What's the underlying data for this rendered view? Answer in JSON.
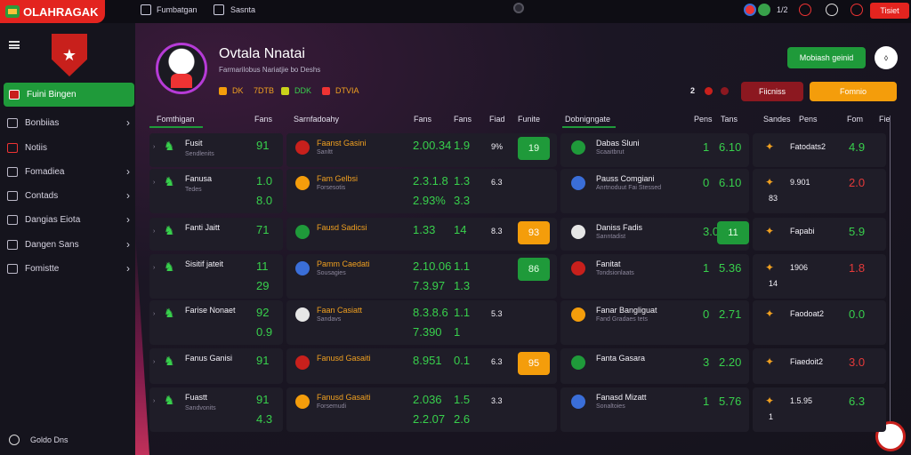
{
  "app": {
    "logo_text": "OLAHRAGAK"
  },
  "topbar": {
    "item1": "Fumbatgan",
    "item2": "Sasnta",
    "count": "1/2",
    "btn": "Tisiet"
  },
  "sidebar": {
    "active": "Fuini Bingen",
    "items": [
      {
        "label": "Bonbiias",
        "chevron": true
      },
      {
        "label": "Notiis",
        "chevron": false
      },
      {
        "label": "Fomadiea",
        "chevron": true
      },
      {
        "label": "Contads",
        "chevron": true
      },
      {
        "label": "Dangias Eiota",
        "chevron": true
      },
      {
        "label": "Dangen Sans",
        "chevron": true
      },
      {
        "label": "Fomistte",
        "chevron": true
      }
    ],
    "bottom": "Goldo Dns"
  },
  "profile": {
    "name": "Ovtala Nnatai",
    "sub": "Farmarilobus Nariatjie bo Deshs",
    "stats": [
      "DK",
      "7DTB",
      "DDK",
      "DTVIA"
    ],
    "btn_green": "Mobiash geinid",
    "btn_red": "Fiicniss",
    "btn_yellow": "Fomnio",
    "mini": "2"
  },
  "headers": {
    "left": [
      "Fomthigan",
      "Fans",
      "Sarnfadoahy",
      "Fans",
      "Fans",
      "Fiad",
      "Funite"
    ],
    "right": [
      "Dobnigngate",
      "Pens",
      "Tans",
      "Sandes",
      "Pens",
      "Fom",
      "Fie"
    ]
  },
  "col1": [
    {
      "name": "Fusit",
      "sub": "Sendlenits",
      "v1": "91",
      "v2": ""
    },
    {
      "name": "Fanusa",
      "sub": "Tedes",
      "v1": "1.0",
      "v2": "8.0"
    },
    {
      "name": "Fanti Jaitt",
      "sub": "",
      "v1": "71",
      "v2": ""
    },
    {
      "name": "Sisitif jateit",
      "sub": "",
      "v1": "11",
      "v2": "29"
    },
    {
      "name": "Farise Nonaet",
      "sub": "",
      "v1": "92",
      "v2": "0.9"
    },
    {
      "name": "Fanus Ganisi",
      "sub": "",
      "v1": "91",
      "v2": ""
    },
    {
      "name": "Fuastt",
      "sub": "Sandvonits",
      "v1": "91",
      "v2": "4.3"
    }
  ],
  "col2": [
    {
      "name": "Faanst Gasini",
      "sub": "Sanltt",
      "a": "2.00.34",
      "b": "1.9",
      "c": "9%",
      "pill": "19",
      "kind": "g",
      "a2": "",
      "b2": ""
    },
    {
      "name": "Fam Gelbsi",
      "sub": "Forsesotis",
      "a": "2.3.1.8",
      "b": "1.3",
      "c": "6.3",
      "pill": "",
      "kind": "",
      "a2": "2.93%",
      "b2": "3.3"
    },
    {
      "name": "Fausd Sadicsi",
      "sub": "",
      "a": "1.33",
      "b": "14",
      "c": "8.3",
      "pill": "93",
      "kind": "o",
      "a2": "",
      "b2": ""
    },
    {
      "name": "Pamm Caedati",
      "sub": "Sousagies",
      "a": "2.10.06",
      "b": "1.1",
      "c": "",
      "pill": "86",
      "kind": "g",
      "a2": "7.3.97",
      "b2": "1.3"
    },
    {
      "name": "Faan Casiatt",
      "sub": "Sandavs",
      "a": "8.3.8.6",
      "b": "1.1",
      "c": "5.3",
      "pill": "",
      "kind": "",
      "a2": "7.390",
      "b2": "1"
    },
    {
      "name": "Fanusd Gasaiti",
      "sub": "",
      "a": "8.951",
      "b": "0.1",
      "c": "6.3",
      "pill": "95",
      "kind": "o",
      "a2": "",
      "b2": ""
    },
    {
      "name": "Fanusd Gasaiti",
      "sub": "Forsemudi",
      "a": "2.036",
      "b": "1.5",
      "c": "3.3",
      "pill": "",
      "kind": "",
      "a2": "2.2.07",
      "b2": "2.6"
    }
  ],
  "col3": [
    {
      "name": "Dabas Sluni",
      "sub": "Scaaitbrut",
      "a": "1",
      "b": "6.10",
      "pill": "",
      "kind": ""
    },
    {
      "name": "Pauss Comgiani",
      "sub": "Anrtnoduut Fai Stessed",
      "a": "0",
      "b": "6.10",
      "pill": "",
      "kind": ""
    },
    {
      "name": "Daniss Fadis",
      "sub": "Sanntadist",
      "a": "3.0",
      "b": "",
      "pill": "11",
      "kind": "g"
    },
    {
      "name": "Fanitat",
      "sub": "Tondsionlaats",
      "a": "1",
      "b": "5.36",
      "pill": "",
      "kind": ""
    },
    {
      "name": "Fanar Bangliguat",
      "sub": "Fand Gradaes tets",
      "a": "0",
      "b": "2.71",
      "pill": "",
      "kind": ""
    },
    {
      "name": "Fanta Gasara",
      "sub": "",
      "a": "3",
      "b": "2.20",
      "pill": "",
      "kind": ""
    },
    {
      "name": "Fanasd Mizatt",
      "sub": "Sonaltoies",
      "a": "1",
      "b": "5.76",
      "pill": "",
      "kind": ""
    }
  ],
  "col4": [
    {
      "name": "Fatodats2",
      "a": "",
      "b": "4.9"
    },
    {
      "name": "9.901",
      "a": "83",
      "b": "2.0"
    },
    {
      "name": "Fapabi",
      "a": "",
      "b": "5.9"
    },
    {
      "name": "1906",
      "a": "14",
      "b": "1.8"
    },
    {
      "name": "Faodoat2",
      "a": "",
      "b": "0.0"
    },
    {
      "name": "Fiaedoit2",
      "a": "",
      "b": "3.0"
    },
    {
      "name": "1.5.95",
      "a": "1",
      "b": "6.3"
    }
  ]
}
